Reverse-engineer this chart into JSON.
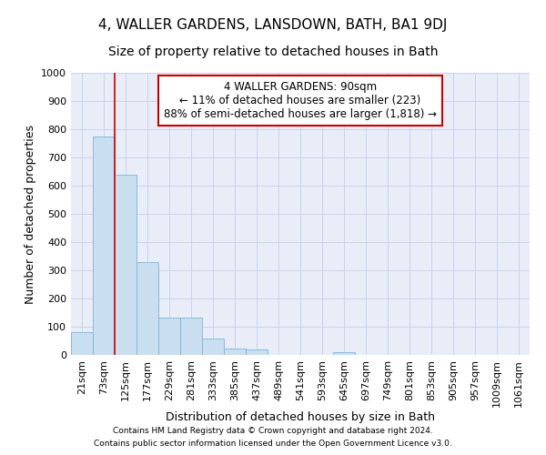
{
  "title": "4, WALLER GARDENS, LANSDOWN, BATH, BA1 9DJ",
  "subtitle": "Size of property relative to detached houses in Bath",
  "xlabel": "Distribution of detached houses by size in Bath",
  "ylabel": "Number of detached properties",
  "footer_line1": "Contains HM Land Registry data © Crown copyright and database right 2024.",
  "footer_line2": "Contains public sector information licensed under the Open Government Licence v3.0.",
  "categories": [
    "21sqm",
    "73sqm",
    "125sqm",
    "177sqm",
    "229sqm",
    "281sqm",
    "333sqm",
    "385sqm",
    "437sqm",
    "489sqm",
    "541sqm",
    "593sqm",
    "645sqm",
    "697sqm",
    "749sqm",
    "801sqm",
    "853sqm",
    "905sqm",
    "957sqm",
    "1009sqm",
    "1061sqm"
  ],
  "values": [
    80,
    775,
    640,
    328,
    133,
    133,
    57,
    22,
    18,
    0,
    0,
    0,
    10,
    0,
    0,
    0,
    0,
    0,
    0,
    0,
    0
  ],
  "bar_color": "#c9dff0",
  "bar_edge_color": "#7db3d8",
  "annotation_box_text": "4 WALLER GARDENS: 90sqm\n← 11% of detached houses are smaller (223)\n88% of semi-detached houses are larger (1,818) →",
  "annotation_box_color": "#ffffff",
  "annotation_box_edge_color": "#cc0000",
  "vline_color": "#cc0000",
  "vline_x_index": 1,
  "ylim": [
    0,
    1000
  ],
  "yticks": [
    0,
    100,
    200,
    300,
    400,
    500,
    600,
    700,
    800,
    900,
    1000
  ],
  "grid_color": "#c5cfe8",
  "background_color": "#e8edf8",
  "title_fontsize": 11,
  "subtitle_fontsize": 10,
  "xlabel_fontsize": 9,
  "ylabel_fontsize": 9,
  "tick_fontsize": 8,
  "annotation_fontsize": 8.5,
  "footer_fontsize": 6.5
}
